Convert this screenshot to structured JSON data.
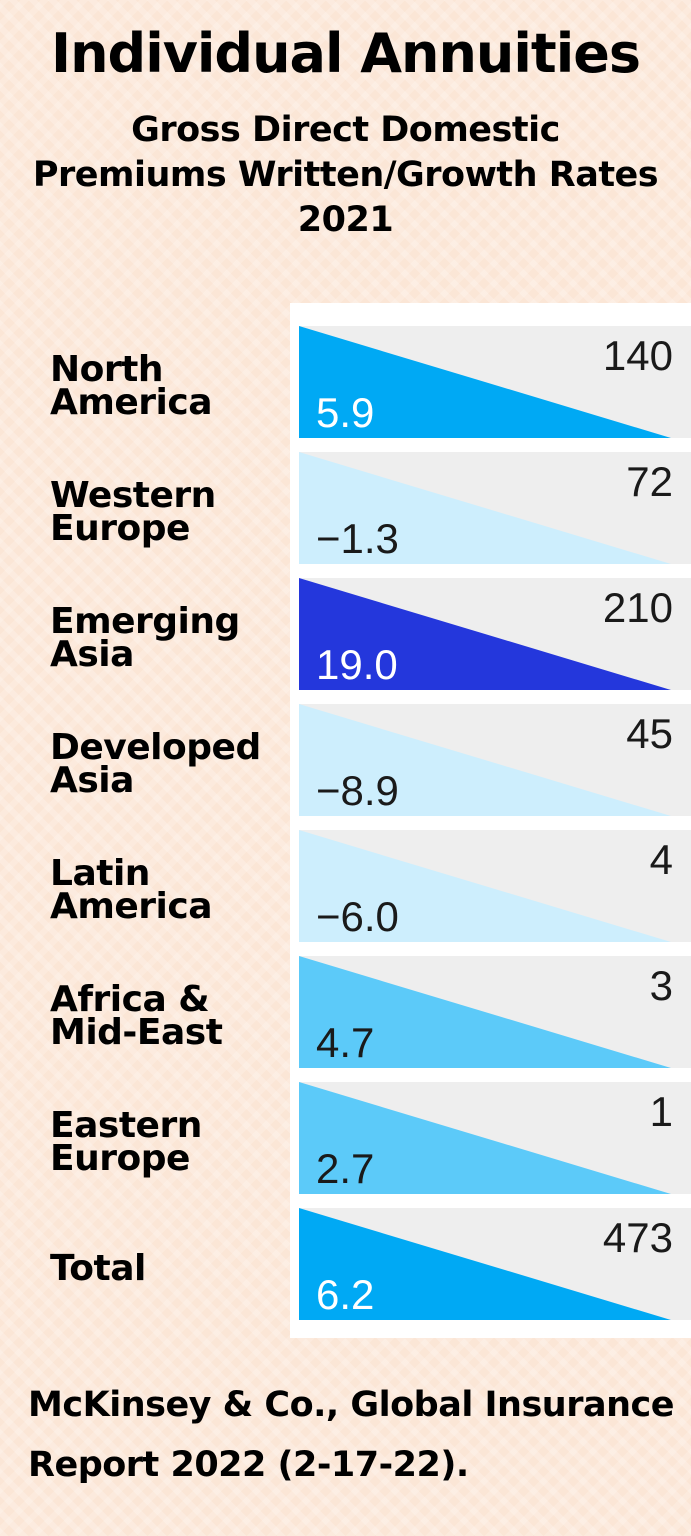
{
  "header": {
    "title": "Individual Annuities",
    "subtitle_lines": [
      "Gross Direct Domestic",
      "Premiums Written/Growth Rates",
      "2021"
    ]
  },
  "chart_data": {
    "type": "bar",
    "categories": [
      [
        "North",
        "America"
      ],
      [
        "Western",
        "Europe"
      ],
      [
        "Emerging",
        "Asia"
      ],
      [
        "Developed",
        "Asia"
      ],
      [
        "Latin",
        "America"
      ],
      [
        "Africa &",
        "Mid-East"
      ],
      [
        "Eastern",
        "Europe"
      ],
      [
        "Total"
      ]
    ],
    "premiums": [
      "140",
      "72",
      "210",
      "45",
      "4",
      "3",
      "1",
      "473"
    ],
    "growth_rates": [
      "5.9",
      "−1.3",
      "19.0",
      "−8.9",
      "−6.0",
      "4.7",
      "2.7",
      "6.2"
    ],
    "colors": [
      "#00a9f4",
      "#cdeefd",
      "#2437dc",
      "#cdeefd",
      "#cdeefd",
      "#5ccaf9",
      "#5ccaf9",
      "#00a9f4"
    ],
    "label_colors": [
      "#ffffff",
      "#1a1a1a",
      "#ffffff",
      "#1a1a1a",
      "#1a1a1a",
      "#1a1a1a",
      "#1a1a1a",
      "#ffffff"
    ]
  },
  "footer": {
    "lines": [
      "McKinsey & Co., Global Insurance",
      "Report 2022 (2-17-22)."
    ]
  }
}
